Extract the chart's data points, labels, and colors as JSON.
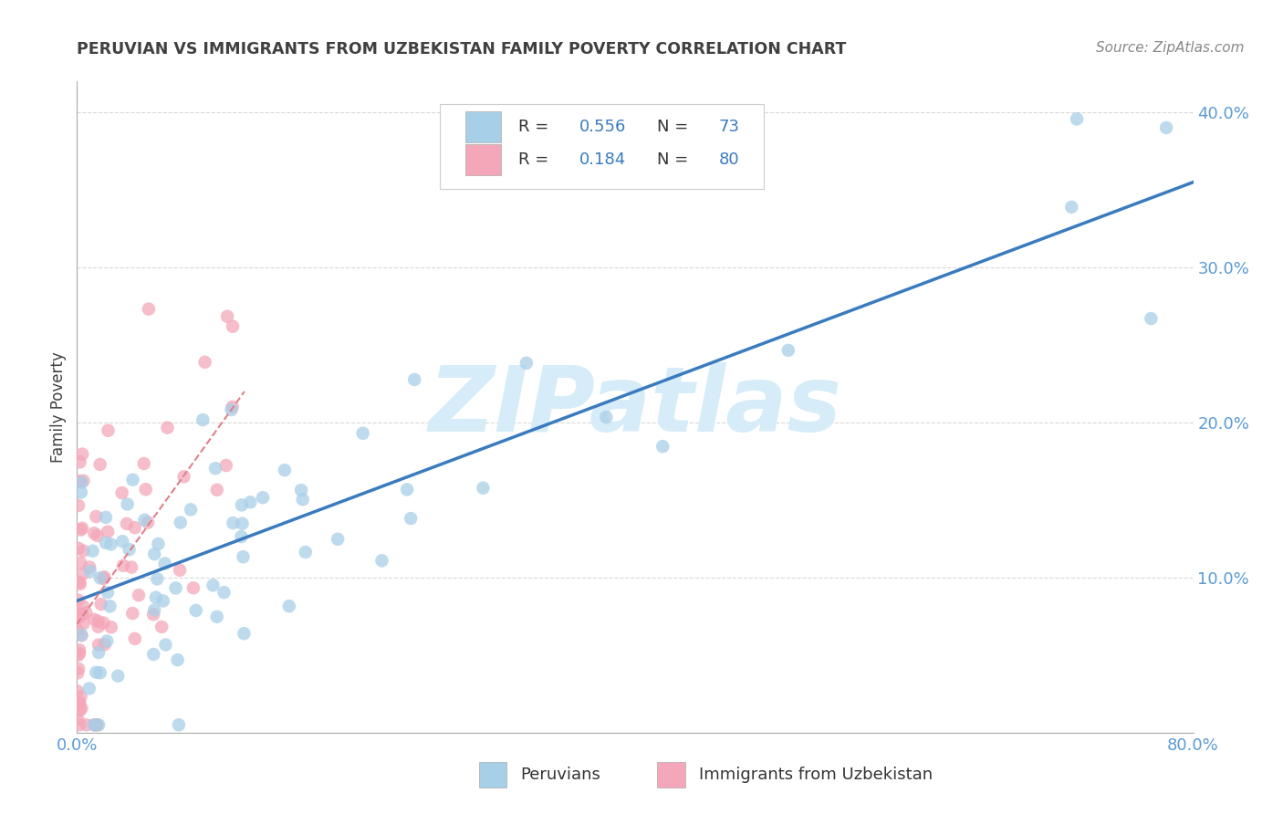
{
  "title": "PERUVIAN VS IMMIGRANTS FROM UZBEKISTAN FAMILY POVERTY CORRELATION CHART",
  "source": "Source: ZipAtlas.com",
  "ylabel": "Family Poverty",
  "xlim": [
    0.0,
    0.8
  ],
  "ylim": [
    0.0,
    0.42
  ],
  "ytick_values": [
    0.0,
    0.1,
    0.2,
    0.3,
    0.4
  ],
  "ytick_labels": [
    "",
    "10.0%",
    "20.0%",
    "30.0%",
    "40.0%"
  ],
  "xtick_values": [
    0.0,
    0.1,
    0.2,
    0.3,
    0.4,
    0.5,
    0.6,
    0.7,
    0.8
  ],
  "xtick_labels": [
    "0.0%",
    "",
    "",
    "",
    "",
    "",
    "",
    "",
    "80.0%"
  ],
  "legend_r1": "0.556",
  "legend_n1": "73",
  "legend_r2": "0.184",
  "legend_n2": "80",
  "blue_color": "#a8cfe8",
  "pink_color": "#f4a7b9",
  "line_blue": "#3a7bbf",
  "line_pink": "#e0808a",
  "watermark": "ZIPatlas",
  "watermark_color": "#d6ecf8",
  "tick_color": "#5b9bd5",
  "title_color": "#404040",
  "ylabel_color": "#404040",
  "source_color": "#888888",
  "legend_text_color": "#333333",
  "legend_num_color": "#3a7bbf",
  "grid_color": "#d8d8d8",
  "blue_line_start_x": 0.0,
  "blue_line_start_y": 0.085,
  "blue_line_end_x": 0.8,
  "blue_line_end_y": 0.355,
  "pink_line_start_x": 0.0,
  "pink_line_start_y": 0.07,
  "pink_line_end_x": 0.12,
  "pink_line_end_y": 0.22
}
